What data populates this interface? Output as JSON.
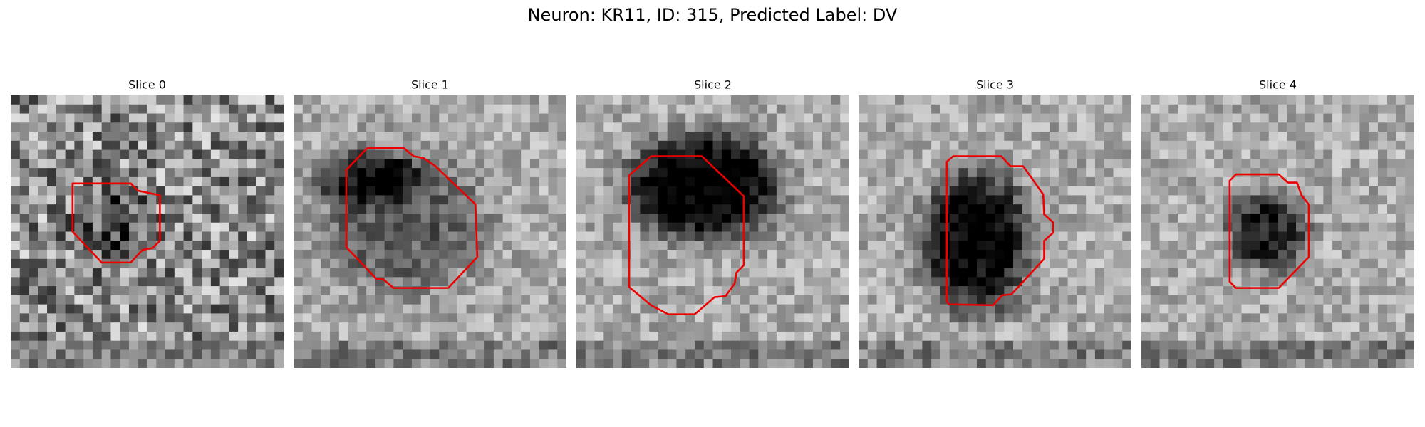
{
  "header": {
    "title": "Neuron: KR11, ID: 315, Predicted Label: DV"
  },
  "panels": [
    {
      "title": "Slice 0"
    },
    {
      "title": "Slice 1"
    },
    {
      "title": "Slice 2"
    },
    {
      "title": "Slice 3"
    },
    {
      "title": "Slice 4"
    }
  ]
}
